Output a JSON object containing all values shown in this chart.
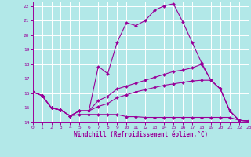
{
  "title": "",
  "xlabel": "Windchill (Refroidissement éolien,°C)",
  "xlim": [
    0,
    23
  ],
  "ylim": [
    14,
    22.3
  ],
  "yticks": [
    14,
    15,
    16,
    17,
    18,
    19,
    20,
    21,
    22
  ],
  "xticks": [
    0,
    1,
    2,
    3,
    4,
    5,
    6,
    7,
    8,
    9,
    10,
    11,
    12,
    13,
    14,
    15,
    16,
    17,
    18,
    19,
    20,
    21,
    22,
    23
  ],
  "background_color": "#b2e8e8",
  "grid_color": "#d0f0f0",
  "line_color": "#990099",
  "lines": [
    {
      "x": [
        0,
        1,
        2,
        3,
        4,
        5,
        6,
        7,
        8,
        9,
        10,
        11,
        12,
        13,
        14,
        15,
        16,
        17,
        18,
        19,
        20,
        21,
        22,
        23
      ],
      "y": [
        16.1,
        15.85,
        15.0,
        14.85,
        14.45,
        14.8,
        14.8,
        17.85,
        17.35,
        19.5,
        20.85,
        20.65,
        21.0,
        21.7,
        22.0,
        22.15,
        20.9,
        19.5,
        18.1,
        16.9,
        16.3,
        14.8,
        14.15,
        14.1
      ]
    },
    {
      "x": [
        0,
        1,
        2,
        3,
        4,
        5,
        6,
        7,
        8,
        9,
        10,
        11,
        12,
        13,
        14,
        15,
        16,
        17,
        18,
        19,
        20,
        21,
        22,
        23
      ],
      "y": [
        16.1,
        15.85,
        15.0,
        14.85,
        14.45,
        14.8,
        14.8,
        15.5,
        15.8,
        16.3,
        16.5,
        16.7,
        16.9,
        17.1,
        17.3,
        17.5,
        17.6,
        17.75,
        18.0,
        16.9,
        16.3,
        14.8,
        14.15,
        14.1
      ]
    },
    {
      "x": [
        0,
        1,
        2,
        3,
        4,
        5,
        6,
        7,
        8,
        9,
        10,
        11,
        12,
        13,
        14,
        15,
        16,
        17,
        18,
        19,
        20,
        21,
        22,
        23
      ],
      "y": [
        16.1,
        15.85,
        15.0,
        14.85,
        14.45,
        14.8,
        14.8,
        15.1,
        15.3,
        15.7,
        15.9,
        16.1,
        16.25,
        16.4,
        16.55,
        16.65,
        16.75,
        16.85,
        16.9,
        16.9,
        16.3,
        14.8,
        14.15,
        14.1
      ]
    },
    {
      "x": [
        0,
        1,
        2,
        3,
        4,
        5,
        6,
        7,
        8,
        9,
        10,
        11,
        12,
        13,
        14,
        15,
        16,
        17,
        18,
        19,
        20,
        21,
        22,
        23
      ],
      "y": [
        16.1,
        15.85,
        15.0,
        14.85,
        14.45,
        14.55,
        14.55,
        14.55,
        14.55,
        14.55,
        14.4,
        14.4,
        14.35,
        14.35,
        14.35,
        14.35,
        14.35,
        14.35,
        14.35,
        14.35,
        14.35,
        14.35,
        14.15,
        14.1
      ]
    }
  ]
}
